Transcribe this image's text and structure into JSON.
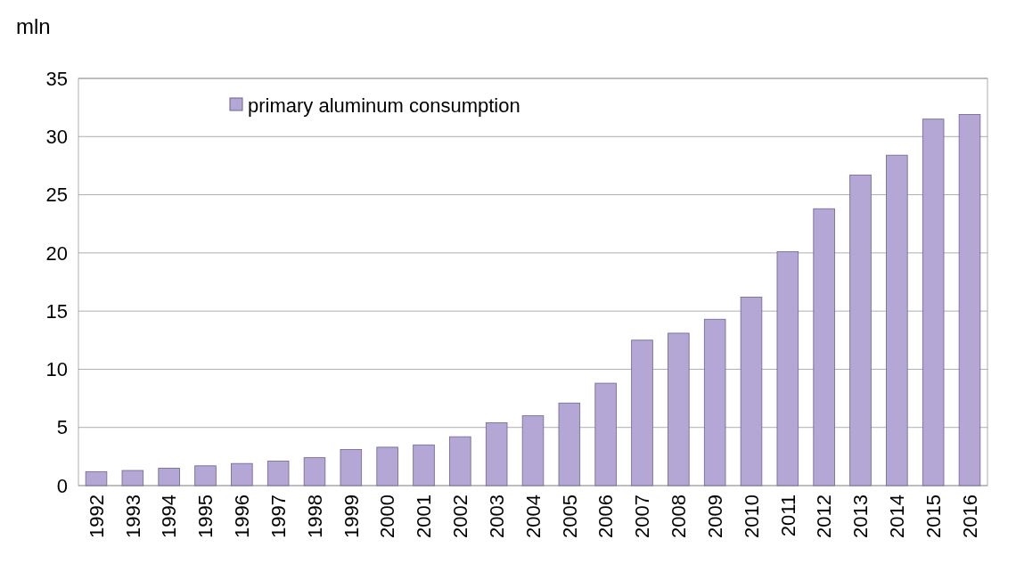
{
  "chart_data": {
    "type": "bar",
    "ylabel": "mln",
    "categories": [
      "1992",
      "1993",
      "1994",
      "1995",
      "1996",
      "1997",
      "1998",
      "1999",
      "2000",
      "2001",
      "2002",
      "2003",
      "2004",
      "2005",
      "2006",
      "2007",
      "2008",
      "2009",
      "2010",
      "2011",
      "2012",
      "2013",
      "2014",
      "2015",
      "2016"
    ],
    "series": [
      {
        "name": "primary aluminum consumption",
        "color": "#b4a7d6",
        "values": [
          1.2,
          1.3,
          1.5,
          1.7,
          1.9,
          2.1,
          2.4,
          3.1,
          3.3,
          3.5,
          4.2,
          5.4,
          6.0,
          7.1,
          8.8,
          12.5,
          13.1,
          14.3,
          16.2,
          20.1,
          23.8,
          26.7,
          28.4,
          31.5,
          31.9
        ]
      }
    ],
    "ylim": [
      0,
      35
    ],
    "yticks": [
      0,
      5,
      10,
      15,
      20,
      25,
      30,
      35
    ],
    "grid": "y",
    "legend": "top left"
  }
}
